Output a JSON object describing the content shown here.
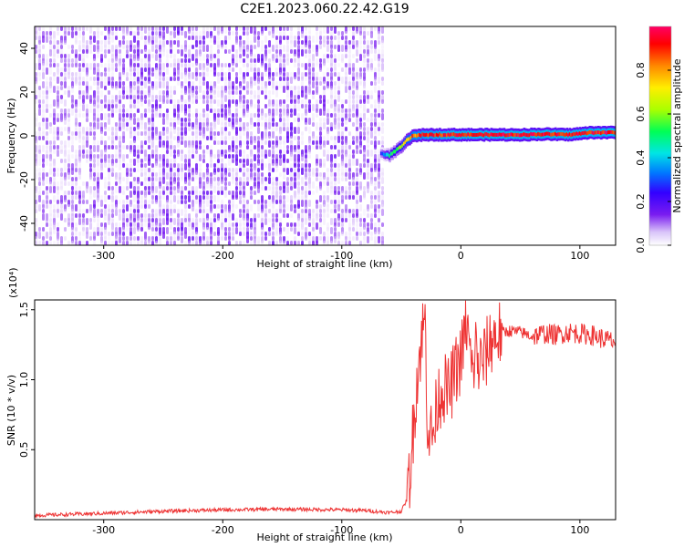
{
  "figure_title": "C2E1.2023.060.22.42.G19",
  "chart_data": [
    {
      "type": "heatmap",
      "panel": "spectrogram",
      "xlabel": "Height of straight line (km)",
      "ylabel": "Frequency (Hz)",
      "xlim": [
        -358,
        130
      ],
      "ylim": [
        -50,
        50
      ],
      "xticks": [
        -300,
        -200,
        -100,
        0,
        100
      ],
      "yticks": [
        -40,
        -20,
        0,
        20,
        40
      ],
      "colorbar": {
        "label": "Normalized spectral amplitude",
        "range": [
          0,
          1
        ],
        "ticks": [
          0.0,
          0.2,
          0.4,
          0.6,
          0.8
        ],
        "colormap": "rainbow",
        "colors": [
          "#ffffff",
          "#e9d8fb",
          "#7a1cf0",
          "#3300ff",
          "#0077ff",
          "#00e5e5",
          "#00ff55",
          "#aaff00",
          "#ffee00",
          "#ff8800",
          "#ff0000",
          "#ff0066"
        ]
      },
      "noise_region": {
        "x": [
          -358,
          -65
        ],
        "y": [
          -50,
          50
        ],
        "amplitude": [
          0.0,
          0.2
        ]
      },
      "signal_track": {
        "x": [
          -67,
          -60,
          -55,
          -50,
          -45,
          -40,
          -30,
          0,
          50,
          70,
          90,
          100,
          110,
          120,
          130
        ],
        "frequency": [
          -8,
          -9,
          -7,
          -5,
          -2,
          0,
          0.5,
          0.5,
          0.5,
          0.8,
          0.5,
          1,
          1.5,
          1.5,
          1.5
        ],
        "amplitude": [
          0.3,
          0.55,
          0.6,
          0.7,
          0.8,
          0.9,
          0.95,
          1.0,
          1.0,
          1.0,
          1.0,
          1.0,
          1.0,
          1.0,
          1.0
        ]
      }
    },
    {
      "type": "line",
      "panel": "snr",
      "xlabel": "Height of straight line (km)",
      "ylabel": "SNR (10 * v/v)",
      "y_multiplier": "(x10⁴)",
      "xlim": [
        -358,
        130
      ],
      "ylim": [
        0,
        15700
      ],
      "xticks": [
        -300,
        -200,
        -100,
        0,
        100
      ],
      "yticks": [
        0.5,
        1.0,
        1.5
      ],
      "ytick_labels": [
        "0.5",
        "1.0",
        "1.5"
      ],
      "color": "#ee3333",
      "x": [
        -358,
        -300,
        -250,
        -200,
        -150,
        -100,
        -80,
        -60,
        -50,
        -45,
        -42,
        -38,
        -35,
        -32,
        -30,
        -28,
        -25,
        -22,
        -20,
        -15,
        -10,
        -5,
        0,
        5,
        10,
        12,
        15,
        20,
        25,
        30,
        40,
        50,
        60,
        70,
        80,
        90,
        100,
        110,
        120,
        130
      ],
      "y": [
        300,
        450,
        600,
        700,
        750,
        700,
        650,
        500,
        600,
        1500,
        4000,
        9000,
        11500,
        13500,
        14200,
        7000,
        6000,
        6500,
        8500,
        9500,
        9000,
        10500,
        11500,
        14000,
        10000,
        12500,
        11000,
        11500,
        12800,
        13200,
        13500,
        13400,
        13100,
        13300,
        13200,
        13400,
        13300,
        13200,
        12900,
        12700
      ]
    }
  ]
}
